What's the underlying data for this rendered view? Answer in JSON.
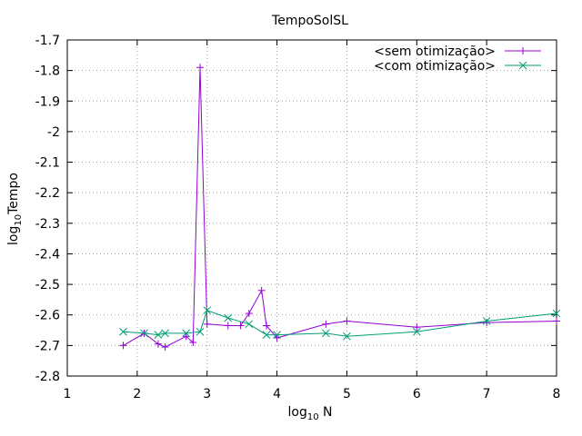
{
  "chart_data": {
    "type": "line",
    "title": "TempoSolSL",
    "xlabel": {
      "prefix": "log",
      "sub": "10",
      "suffix": " N"
    },
    "ylabel": {
      "prefix": "log",
      "sub": "10",
      "suffix": "Tempo"
    },
    "xlim": [
      1,
      8
    ],
    "ylim": [
      -2.8,
      -1.7
    ],
    "xticks": [
      1,
      2,
      3,
      4,
      5,
      6,
      7,
      8
    ],
    "yticks": [
      -2.8,
      -2.7,
      -2.6,
      -2.5,
      -2.4,
      -2.3,
      -2.2,
      -2.1,
      -2,
      -1.9,
      -1.8,
      -1.7
    ],
    "xtick_labels": [
      "1",
      "2",
      "3",
      "4",
      "5",
      "6",
      "7",
      "8"
    ],
    "ytick_labels": [
      "-2.8",
      "-2.7",
      "-2.6",
      "-2.5",
      "-2.4",
      "-2.3",
      "-2.2",
      "-2.1",
      "-2",
      "-1.9",
      "-1.8",
      "-1.7"
    ],
    "grid": true,
    "legend_position": "top-right",
    "series": [
      {
        "name": "<sem otimização>",
        "color": "#9400d3",
        "marker": "plus",
        "x": [
          1.8,
          2.1,
          2.3,
          2.4,
          2.7,
          2.8,
          2.9,
          3.0,
          3.3,
          3.48,
          3.6,
          3.78,
          3.85,
          4.0,
          4.7,
          5.0,
          6.0,
          7.0,
          8.0
        ],
        "y": [
          -2.7,
          -2.66,
          -2.695,
          -2.705,
          -2.67,
          -2.69,
          -1.79,
          -2.63,
          -2.635,
          -2.635,
          -2.595,
          -2.52,
          -2.635,
          -2.675,
          -2.63,
          -2.62,
          -2.64,
          -2.625,
          -2.62
        ]
      },
      {
        "name": "<com otimização>",
        "color": "#009e73",
        "marker": "cross",
        "x": [
          1.8,
          2.1,
          2.3,
          2.4,
          2.7,
          2.9,
          3.0,
          3.3,
          3.6,
          3.85,
          4.0,
          4.7,
          5.0,
          6.0,
          7.0,
          8.0
        ],
        "y": [
          -2.655,
          -2.66,
          -2.665,
          -2.66,
          -2.66,
          -2.655,
          -2.585,
          -2.61,
          -2.63,
          -2.665,
          -2.665,
          -2.66,
          -2.67,
          -2.655,
          -2.62,
          -2.595
        ]
      }
    ]
  }
}
